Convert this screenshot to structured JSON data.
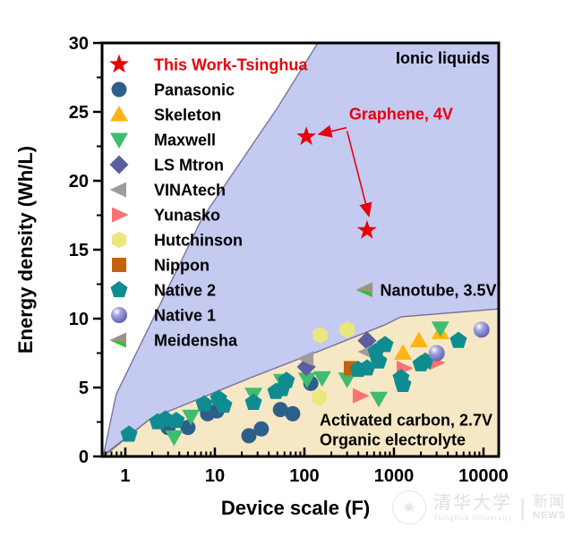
{
  "figure": {
    "watermark": {
      "university_zh": "清华大学",
      "university_en": "Tsinghua University",
      "divider": "|",
      "news_zh": "新闻",
      "news_en": "NEWS"
    }
  },
  "chart_data": {
    "type": "scatter",
    "title": "",
    "xlabel": "Device scale (F)",
    "ylabel": "Energy density (Wh/L)",
    "x_scale": "log",
    "xlim": [
      0.55,
      14800
    ],
    "ylim": [
      0,
      30
    ],
    "x_ticks": [
      1,
      10,
      100,
      1000,
      10000
    ],
    "x_tick_labels": [
      "1",
      "10",
      "100",
      "1000",
      "10000"
    ],
    "y_ticks": [
      0,
      5,
      10,
      15,
      20,
      25,
      30
    ],
    "y_minor_ticks": [
      2.5,
      7.5,
      12.5,
      17.5,
      22.5,
      27.5
    ],
    "grid": false,
    "legend_position": "upper-left-inside",
    "frame_color": "#000000",
    "region_border_color": "#76769a",
    "regions": [
      {
        "name": "ionic-liquids",
        "color": "#c5caf1",
        "polygon": [
          [
            0.57,
            0.1
          ],
          [
            0.79,
            4.5
          ],
          [
            7.1,
            17.2
          ],
          [
            50,
            25.3
          ],
          [
            141,
            30
          ],
          [
            14800,
            30
          ],
          [
            14800,
            10.7
          ],
          [
            1200,
            10.13
          ],
          [
            794,
            9.55
          ],
          [
            158,
            7.73
          ],
          [
            25,
            5.71
          ],
          [
            1.9,
            2.73
          ]
        ]
      },
      {
        "name": "activated-carbon",
        "color": "#f6e8c4",
        "polygon": [
          [
            0.57,
            0
          ],
          [
            1.9,
            2.73
          ],
          [
            25,
            5.71
          ],
          [
            158,
            7.73
          ],
          [
            794,
            9.55
          ],
          [
            1200,
            10.13
          ],
          [
            14800,
            10.7
          ],
          [
            14800,
            0
          ]
        ]
      }
    ],
    "series": [
      {
        "name": "This Work-Tsinghua",
        "marker": "star",
        "color": "#e8000b",
        "label_color": "#e8000b",
        "points": [
          [
            105,
            23.2
          ],
          [
            500,
            16.4
          ]
        ]
      },
      {
        "name": "Panasonic",
        "marker": "circle",
        "color": "#2d5f8b",
        "label_color": "#000000",
        "points": [
          [
            3.0,
            2.1
          ],
          [
            5.0,
            2.1
          ],
          [
            8.3,
            3.1
          ],
          [
            10.5,
            3.3
          ],
          [
            24,
            1.5
          ],
          [
            33,
            2.0
          ],
          [
            54,
            3.4
          ],
          [
            74,
            3.1
          ],
          [
            118,
            5.3
          ]
        ]
      },
      {
        "name": "Skeleton",
        "marker": "triangle-up",
        "color": "#fcb514",
        "label_color": "#000000",
        "points": [
          [
            1260,
            7.5
          ],
          [
            1900,
            8.4
          ],
          [
            3300,
            9.0
          ]
        ]
      },
      {
        "name": "Maxwell",
        "marker": "triangle-down",
        "color": "#3fbc70",
        "label_color": "#000000",
        "points": [
          [
            3.5,
            1.4
          ],
          [
            5.4,
            2.9
          ],
          [
            27,
            4.5
          ],
          [
            56,
            5.5
          ],
          [
            107,
            5.6
          ],
          [
            158,
            5.7
          ],
          [
            300,
            5.6
          ],
          [
            676,
            4.2
          ],
          [
            3300,
            9.3
          ]
        ]
      },
      {
        "name": "LS Mtron",
        "marker": "diamond",
        "color": "#5c5d9e",
        "label_color": "#000000",
        "points": [
          [
            105,
            6.5
          ],
          [
            500,
            8.4
          ]
        ]
      },
      {
        "name": "VINAtech",
        "marker": "triangle-left",
        "color": "#9d9d9d",
        "label_color": "#000000",
        "points": [
          [
            105,
            7.1
          ],
          [
            500,
            7.6
          ]
        ]
      },
      {
        "name": "Yunasko",
        "marker": "triangle-right",
        "color": "#f87272",
        "label_color": "#000000",
        "points": [
          [
            417,
            4.4
          ],
          [
            1290,
            6.4
          ],
          [
            2950,
            6.8
          ]
        ]
      },
      {
        "name": "Hutchinson",
        "marker": "hexagon",
        "color": "#ebe77f",
        "label_color": "#000000",
        "points": [
          [
            147,
            4.3
          ],
          [
            150,
            8.8
          ],
          [
            300,
            9.2
          ]
        ]
      },
      {
        "name": "Nippon",
        "marker": "square",
        "color": "#c2610e",
        "label_color": "#000000",
        "points": [
          [
            331,
            6.4
          ]
        ]
      },
      {
        "name": "Native 2",
        "marker": "pentagon",
        "color": "#0f8c90",
        "label_color": "#000000",
        "points": [
          [
            1.1,
            1.6
          ],
          [
            2.3,
            2.5
          ],
          [
            2.8,
            2.7
          ],
          [
            3.7,
            2.6
          ],
          [
            7.6,
            3.8
          ],
          [
            11,
            4.2
          ],
          [
            12.6,
            3.7
          ],
          [
            27,
            3.9
          ],
          [
            48,
            4.7
          ],
          [
            56,
            4.9
          ],
          [
            63,
            5.5
          ],
          [
            400,
            6.3
          ],
          [
            500,
            6.4
          ],
          [
            630,
            7.6
          ],
          [
            676,
            6.9
          ],
          [
            794,
            8.1
          ],
          [
            1200,
            5.7
          ],
          [
            1260,
            5.2
          ],
          [
            2000,
            6.7
          ],
          [
            2240,
            6.9
          ],
          [
            5250,
            8.4
          ]
        ]
      },
      {
        "name": "Native 1",
        "marker": "sphere",
        "color": "#7b7bc9",
        "label_color": "#000000",
        "points": [
          [
            3000,
            7.5
          ],
          [
            9500,
            9.2
          ]
        ]
      },
      {
        "name": "Meidensha",
        "marker": "triangle-left-duo",
        "color": "#9e9184",
        "color2": "#1fcb1f",
        "label_color": "#000000",
        "points": [
          [
            480,
            12.1
          ]
        ]
      }
    ],
    "annotations": [
      {
        "id": "ionic-liquids-label",
        "text": "Ionic liquids",
        "x": 11750,
        "y": 28.9,
        "anchor": "end",
        "color": "#000000"
      },
      {
        "id": "graphene-label",
        "text": "Graphene, 4V",
        "x": 1200,
        "y": 24.85,
        "anchor": "middle",
        "color": "#e8000b"
      },
      {
        "id": "nanotube-label",
        "text": "Nanotube, 3.5V",
        "x": 700,
        "y": 12.05,
        "anchor": "start",
        "color": "#000000"
      },
      {
        "id": "activated-carbon-line1",
        "text": "Activated carbon, 2.7V",
        "x": 148,
        "y": 2.62,
        "anchor": "start",
        "color": "#000000"
      },
      {
        "id": "activated-carbon-line2",
        "text": "Organic electrolyte",
        "x": 148,
        "y": 1.2,
        "anchor": "start",
        "color": "#000000"
      }
    ],
    "arrows": [
      {
        "from": [
          295,
          23.85
        ],
        "to": [
          150,
          23.4
        ],
        "color": "#e8000b"
      },
      {
        "from": [
          300,
          23.6
        ],
        "to": [
          520,
          17.55
        ],
        "color": "#e8000b"
      }
    ]
  }
}
